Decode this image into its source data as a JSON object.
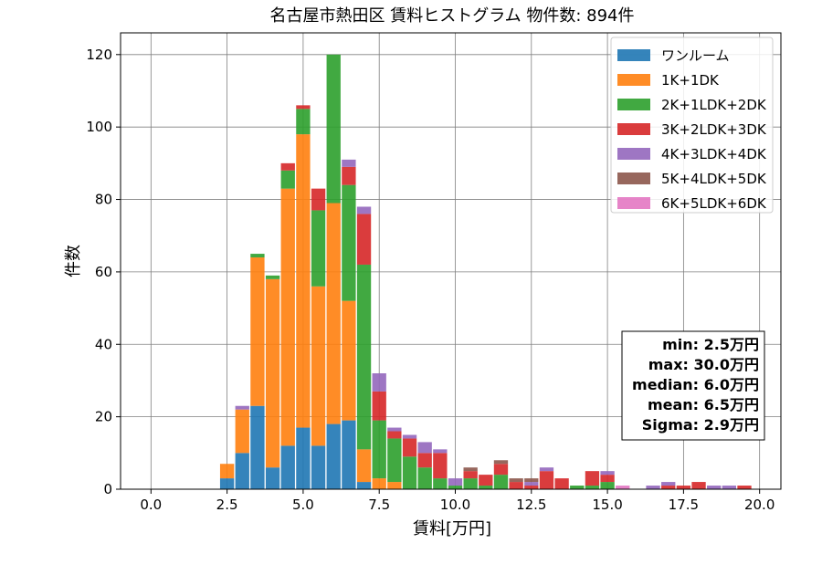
{
  "chart_data": {
    "type": "bar",
    "stacked": true,
    "title": "名古屋市熱田区 賃料ヒストグラム 物件数: 894件",
    "xlabel": "賃料[万円]",
    "ylabel": "件数",
    "xlim": [
      -1.0,
      20.7
    ],
    "ylim": [
      0,
      126
    ],
    "grid": true,
    "legend_position": "top-right",
    "bin_width": 0.5,
    "x_ticks": [
      "0.0",
      "2.5",
      "5.0",
      "7.5",
      "10.0",
      "12.5",
      "15.0",
      "17.5",
      "20.0"
    ],
    "y_ticks": [
      "0",
      "20",
      "40",
      "60",
      "80",
      "100",
      "120"
    ],
    "x": [
      2.5,
      3.0,
      3.5,
      4.0,
      4.5,
      5.0,
      5.5,
      6.0,
      6.5,
      7.0,
      7.5,
      8.0,
      8.5,
      9.0,
      9.5,
      10.0,
      10.5,
      11.0,
      11.5,
      12.0,
      12.5,
      13.0,
      13.5,
      14.0,
      14.5,
      15.0,
      15.5,
      16.0,
      16.5,
      17.0,
      17.5,
      18.0,
      18.5,
      19.0,
      19.5,
      20.0
    ],
    "series": [
      {
        "name": "ワンルーム",
        "color": "#1f77b4",
        "values": [
          3,
          10,
          23,
          6,
          12,
          17,
          12,
          18,
          19,
          2,
          0,
          0,
          0,
          0,
          0,
          0,
          0,
          0,
          0,
          0,
          0,
          0,
          0,
          0,
          0,
          0,
          0,
          0,
          0,
          0,
          0,
          0,
          0,
          0,
          0,
          0
        ]
      },
      {
        "name": "1K+1DK",
        "color": "#ff7f0e",
        "values": [
          4,
          12,
          41,
          52,
          71,
          81,
          44,
          61,
          33,
          9,
          3,
          2,
          0,
          0,
          0,
          0,
          0,
          0,
          0,
          0,
          0,
          0,
          0,
          0,
          0,
          0,
          0,
          0,
          0,
          0,
          0,
          0,
          0,
          0,
          0,
          0
        ]
      },
      {
        "name": "2K+1LDK+2DK",
        "color": "#2ca02c",
        "values": [
          0,
          0,
          1,
          1,
          5,
          7,
          21,
          41,
          32,
          51,
          16,
          12,
          9,
          6,
          3,
          1,
          3,
          1,
          4,
          0,
          0,
          0,
          0,
          1,
          1,
          2,
          0,
          0,
          0,
          0,
          0,
          0,
          0,
          0,
          0,
          0
        ]
      },
      {
        "name": "3K+2LDK+3DK",
        "color": "#d62728",
        "values": [
          0,
          0,
          0,
          0,
          2,
          1,
          6,
          0,
          5,
          14,
          8,
          2,
          5,
          4,
          7,
          0,
          2,
          3,
          3,
          2,
          1,
          5,
          3,
          0,
          4,
          2,
          0,
          0,
          0,
          1,
          1,
          2,
          0,
          0,
          1,
          0
        ]
      },
      {
        "name": "4K+3LDK+4DK",
        "color": "#9467bd",
        "values": [
          0,
          1,
          0,
          0,
          0,
          0,
          0,
          0,
          2,
          2,
          5,
          1,
          1,
          3,
          1,
          2,
          0,
          0,
          0,
          0,
          1,
          1,
          0,
          0,
          0,
          1,
          0,
          0,
          1,
          1,
          0,
          0,
          1,
          1,
          0,
          0
        ]
      },
      {
        "name": "5K+4LDK+5DK",
        "color": "#8c564b",
        "values": [
          0,
          0,
          0,
          0,
          0,
          0,
          0,
          0,
          0,
          0,
          0,
          0,
          0,
          0,
          0,
          0,
          1,
          0,
          1,
          1,
          1,
          0,
          0,
          0,
          0,
          0,
          0,
          0,
          0,
          0,
          0,
          0,
          0,
          0,
          0,
          0
        ]
      },
      {
        "name": "6K+5LDK+6DK",
        "color": "#e377c2",
        "values": [
          0,
          0,
          0,
          0,
          0,
          0,
          0,
          0,
          0,
          0,
          0,
          0,
          0,
          0,
          0,
          0,
          0,
          0,
          0,
          0,
          0,
          0,
          0,
          0,
          0,
          0,
          1,
          0,
          0,
          0,
          0,
          0,
          0,
          0,
          0,
          0
        ]
      }
    ],
    "stats": [
      "min: 2.5万円",
      "max: 30.0万円",
      "median: 6.0万円",
      "mean: 6.5万円",
      "Sigma: 2.9万円"
    ]
  }
}
